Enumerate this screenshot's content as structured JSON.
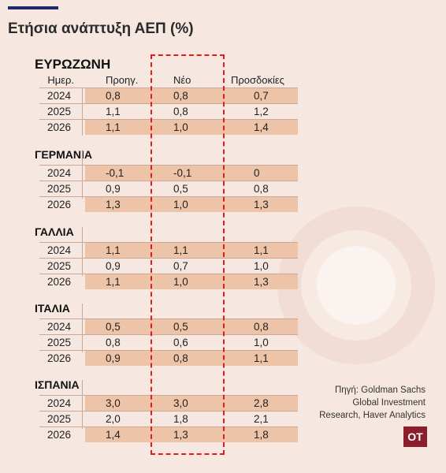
{
  "title": "Ετήσια ανάπτυξη ΑΕΠ (%)",
  "chart_data": {
    "type": "table",
    "title": "Ετήσια ανάπτυξη ΑΕΠ (%)",
    "columns": [
      "Ημερ.",
      "Προηγ.",
      "Νέο",
      "Προσδοκίες"
    ],
    "sections": [
      {
        "name": "ΕΥΡΩΖΩΝΗ",
        "rows": [
          {
            "year": "2024",
            "prev": "0,8",
            "new": "0,8",
            "expect": "0,7"
          },
          {
            "year": "2025",
            "prev": "1,1",
            "new": "0,8",
            "expect": "1,2"
          },
          {
            "year": "2026",
            "prev": "1,1",
            "new": "1,0",
            "expect": "1,4"
          }
        ]
      },
      {
        "name": "ΓΕΡΜΑΝΙΑ",
        "rows": [
          {
            "year": "2024",
            "prev": "-0,1",
            "new": "-0,1",
            "expect": "0"
          },
          {
            "year": "2025",
            "prev": "0,9",
            "new": "0,5",
            "expect": "0,8"
          },
          {
            "year": "2026",
            "prev": "1,3",
            "new": "1,0",
            "expect": "1,3"
          }
        ]
      },
      {
        "name": "ΓΑΛΛΙΑ",
        "rows": [
          {
            "year": "2024",
            "prev": "1,1",
            "new": "1,1",
            "expect": "1,1"
          },
          {
            "year": "2025",
            "prev": "0,9",
            "new": "0,7",
            "expect": "1,0"
          },
          {
            "year": "2026",
            "prev": "1,1",
            "new": "1,0",
            "expect": "1,3"
          }
        ]
      },
      {
        "name": "ΙΤΑΛΙΑ",
        "rows": [
          {
            "year": "2024",
            "prev": "0,5",
            "new": "0,5",
            "expect": "0,8"
          },
          {
            "year": "2025",
            "prev": "0,8",
            "new": "0,6",
            "expect": "1,0"
          },
          {
            "year": "2026",
            "prev": "0,9",
            "new": "0,8",
            "expect": "1,1"
          }
        ]
      },
      {
        "name": "ΙΣΠΑΝΙΑ",
        "rows": [
          {
            "year": "2024",
            "prev": "3,0",
            "new": "3,0",
            "expect": "2,8"
          },
          {
            "year": "2025",
            "prev": "2,0",
            "new": "1,8",
            "expect": "2,1"
          },
          {
            "year": "2026",
            "prev": "1,4",
            "new": "1,3",
            "expect": "1,8"
          }
        ]
      }
    ],
    "highlighted_column": "Νέο"
  },
  "source": {
    "line1": "Πηγή: Goldman Sachs",
    "line2": "Global Investment",
    "line3": "Research, Haver Analytics"
  },
  "logo": "OT",
  "colors": {
    "background": "#f6e8e1",
    "band": "#eec4a8",
    "highlight_border": "#e8191a",
    "logo": "#8c1d2b",
    "accent_line": "#1f2a6b"
  }
}
